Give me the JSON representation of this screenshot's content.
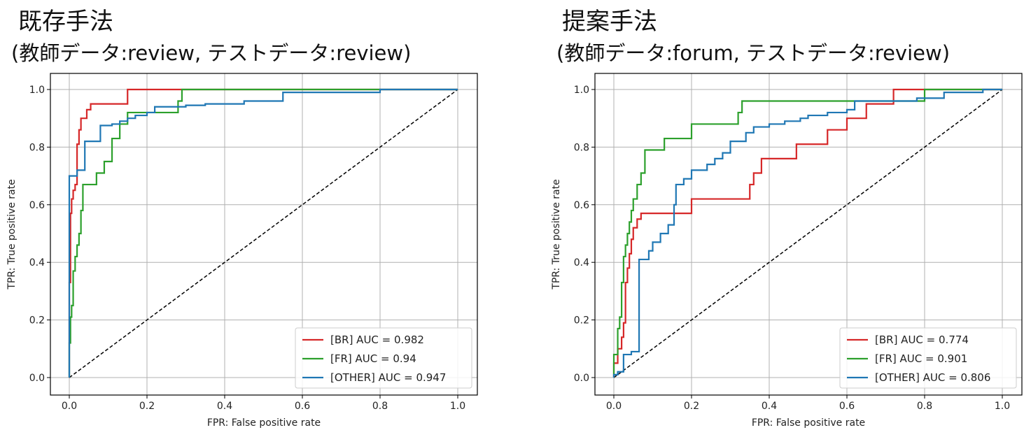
{
  "chart_data": [
    {
      "type": "line",
      "title": "既存手法",
      "subtitle": "(教師データ:review, テストデータ:review)",
      "xlabel": "FPR: False positive rate",
      "ylabel": "TPR: True positive rate",
      "xlim": [
        0,
        1
      ],
      "ylim": [
        0,
        1
      ],
      "xticks": [
        "0.0",
        "0.2",
        "0.4",
        "0.6",
        "0.8",
        "1.0"
      ],
      "yticks": [
        "0.0",
        "0.2",
        "0.4",
        "0.6",
        "0.8",
        "1.0"
      ],
      "grid": true,
      "legend": "lower-right",
      "diagonal": true,
      "series": [
        {
          "name": "[BR] AUC = 0.982",
          "color": "#d62728",
          "x": [
            0,
            0,
            0.003,
            0.003,
            0.006,
            0.006,
            0.01,
            0.01,
            0.015,
            0.015,
            0.02,
            0.02,
            0.025,
            0.025,
            0.03,
            0.03,
            0.035,
            0.035,
            0.045,
            0.045,
            0.055,
            0.055,
            0.15,
            0.15,
            1.0
          ],
          "y": [
            0,
            0.33,
            0.33,
            0.57,
            0.57,
            0.62,
            0.62,
            0.65,
            0.65,
            0.67,
            0.67,
            0.81,
            0.81,
            0.86,
            0.86,
            0.9,
            0.9,
            0.9,
            0.9,
            0.93,
            0.93,
            0.95,
            0.95,
            1.0,
            1.0
          ]
        },
        {
          "name": "[FR] AUC = 0.94",
          "color": "#2ca02c",
          "x": [
            0,
            0,
            0.003,
            0.003,
            0.006,
            0.006,
            0.01,
            0.01,
            0.015,
            0.015,
            0.02,
            0.02,
            0.025,
            0.025,
            0.03,
            0.03,
            0.035,
            0.035,
            0.05,
            0.05,
            0.07,
            0.07,
            0.09,
            0.09,
            0.11,
            0.11,
            0.13,
            0.13,
            0.15,
            0.15,
            0.18,
            0.18,
            0.28,
            0.28,
            0.29,
            0.29,
            1.0
          ],
          "y": [
            0,
            0.12,
            0.12,
            0.21,
            0.21,
            0.25,
            0.25,
            0.37,
            0.37,
            0.42,
            0.42,
            0.46,
            0.46,
            0.5,
            0.5,
            0.58,
            0.58,
            0.67,
            0.67,
            0.67,
            0.67,
            0.71,
            0.71,
            0.75,
            0.75,
            0.83,
            0.83,
            0.88,
            0.88,
            0.92,
            0.92,
            0.92,
            0.92,
            0.96,
            0.96,
            1.0,
            1.0
          ]
        },
        {
          "name": "[OTHER] AUC = 0.947",
          "color": "#1f77b4",
          "x": [
            0,
            0,
            0.02,
            0.02,
            0.04,
            0.04,
            0.08,
            0.08,
            0.11,
            0.11,
            0.13,
            0.13,
            0.15,
            0.15,
            0.17,
            0.17,
            0.2,
            0.2,
            0.22,
            0.22,
            0.3,
            0.3,
            0.35,
            0.35,
            0.45,
            0.45,
            0.55,
            0.55,
            0.8,
            0.8,
            1.0
          ],
          "y": [
            0,
            0.7,
            0.7,
            0.72,
            0.72,
            0.82,
            0.82,
            0.875,
            0.875,
            0.88,
            0.88,
            0.89,
            0.89,
            0.9,
            0.9,
            0.91,
            0.91,
            0.92,
            0.92,
            0.94,
            0.94,
            0.945,
            0.945,
            0.95,
            0.95,
            0.96,
            0.96,
            0.99,
            0.99,
            1.0,
            1.0
          ]
        }
      ]
    },
    {
      "type": "line",
      "title": "提案手法",
      "subtitle": "(教師データ:forum, テストデータ:review)",
      "xlabel": "FPR: False positive rate",
      "ylabel": "TPR: True positive rate",
      "xlim": [
        0,
        1
      ],
      "ylim": [
        0,
        1
      ],
      "xticks": [
        "0.0",
        "0.2",
        "0.4",
        "0.6",
        "0.8",
        "1.0"
      ],
      "yticks": [
        "0.0",
        "0.2",
        "0.4",
        "0.6",
        "0.8",
        "1.0"
      ],
      "grid": true,
      "legend": "lower-right",
      "diagonal": true,
      "series": [
        {
          "name": "[BR] AUC = 0.774",
          "color": "#d62728",
          "x": [
            0,
            0,
            0.01,
            0.01,
            0.02,
            0.02,
            0.025,
            0.025,
            0.03,
            0.03,
            0.035,
            0.035,
            0.04,
            0.04,
            0.045,
            0.045,
            0.05,
            0.05,
            0.06,
            0.06,
            0.07,
            0.07,
            0.2,
            0.2,
            0.35,
            0.35,
            0.36,
            0.36,
            0.38,
            0.38,
            0.4,
            0.4,
            0.47,
            0.47,
            0.55,
            0.55,
            0.6,
            0.6,
            0.65,
            0.65,
            0.68,
            0.68,
            0.72,
            0.72,
            0.8,
            0.8,
            1.0
          ],
          "y": [
            0,
            0.05,
            0.05,
            0.1,
            0.1,
            0.14,
            0.14,
            0.19,
            0.19,
            0.33,
            0.33,
            0.38,
            0.38,
            0.43,
            0.43,
            0.48,
            0.48,
            0.52,
            0.52,
            0.55,
            0.55,
            0.57,
            0.57,
            0.62,
            0.62,
            0.67,
            0.67,
            0.71,
            0.71,
            0.76,
            0.76,
            0.76,
            0.76,
            0.81,
            0.81,
            0.86,
            0.86,
            0.9,
            0.9,
            0.95,
            0.95,
            0.95,
            0.95,
            1.0,
            1.0,
            1.0,
            1.0
          ]
        },
        {
          "name": "[FR] AUC = 0.901",
          "color": "#2ca02c",
          "x": [
            0,
            0,
            0.01,
            0.01,
            0.015,
            0.015,
            0.02,
            0.02,
            0.025,
            0.025,
            0.03,
            0.03,
            0.035,
            0.035,
            0.04,
            0.04,
            0.045,
            0.045,
            0.05,
            0.05,
            0.06,
            0.06,
            0.07,
            0.07,
            0.08,
            0.08,
            0.13,
            0.13,
            0.2,
            0.2,
            0.32,
            0.32,
            0.33,
            0.33,
            0.8,
            0.8,
            1.0
          ],
          "y": [
            0,
            0.08,
            0.08,
            0.17,
            0.17,
            0.21,
            0.21,
            0.33,
            0.33,
            0.42,
            0.42,
            0.46,
            0.46,
            0.5,
            0.5,
            0.54,
            0.54,
            0.58,
            0.58,
            0.62,
            0.62,
            0.67,
            0.67,
            0.71,
            0.71,
            0.79,
            0.79,
            0.83,
            0.83,
            0.88,
            0.88,
            0.92,
            0.92,
            0.96,
            0.96,
            1.0,
            1.0
          ]
        },
        {
          "name": "[OTHER] AUC = 0.806",
          "color": "#1f77b4",
          "x": [
            0,
            0,
            0.01,
            0.01,
            0.025,
            0.025,
            0.045,
            0.045,
            0.065,
            0.065,
            0.09,
            0.09,
            0.1,
            0.1,
            0.12,
            0.12,
            0.14,
            0.14,
            0.155,
            0.155,
            0.16,
            0.16,
            0.18,
            0.18,
            0.2,
            0.2,
            0.24,
            0.24,
            0.26,
            0.26,
            0.28,
            0.28,
            0.3,
            0.3,
            0.34,
            0.34,
            0.36,
            0.36,
            0.4,
            0.4,
            0.44,
            0.44,
            0.48,
            0.48,
            0.5,
            0.5,
            0.55,
            0.55,
            0.6,
            0.6,
            0.62,
            0.62,
            0.78,
            0.78,
            0.85,
            0.85,
            0.95,
            0.95,
            1.0
          ],
          "y": [
            0,
            0.01,
            0.01,
            0.02,
            0.02,
            0.08,
            0.08,
            0.09,
            0.09,
            0.41,
            0.41,
            0.44,
            0.44,
            0.47,
            0.47,
            0.5,
            0.5,
            0.53,
            0.53,
            0.6,
            0.6,
            0.67,
            0.67,
            0.69,
            0.69,
            0.72,
            0.72,
            0.74,
            0.74,
            0.76,
            0.76,
            0.78,
            0.78,
            0.82,
            0.82,
            0.85,
            0.85,
            0.87,
            0.87,
            0.88,
            0.88,
            0.89,
            0.89,
            0.9,
            0.9,
            0.91,
            0.91,
            0.92,
            0.92,
            0.93,
            0.93,
            0.96,
            0.96,
            0.97,
            0.97,
            0.99,
            0.99,
            1.0,
            1.0
          ]
        }
      ]
    }
  ]
}
